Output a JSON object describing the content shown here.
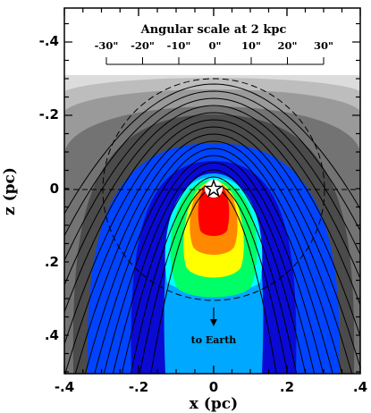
{
  "chart_data": {
    "type": "contour-map",
    "xlabel": "x (pc)",
    "ylabel": "z (pc)",
    "xlim": [
      -0.4,
      0.4
    ],
    "zlim": [
      -0.5,
      0.5
    ],
    "x_ticks": [
      "-.4",
      "-.2",
      "0",
      ".2",
      ".4"
    ],
    "z_ticks": [
      "-.4",
      "-.2",
      "0",
      ".2",
      ".4"
    ],
    "angular_scale": {
      "title": "Angular scale at 2 kpc",
      "ticks": [
        "-30\"",
        "-20\"",
        "-10\"",
        "0\"",
        "10\"",
        "20\"",
        "30\""
      ]
    },
    "annotation": "to Earth",
    "star_position": [
      0,
      0
    ],
    "circle_radius_pc": 0.3,
    "colors": {
      "band_1": "#dcdcdc",
      "band_2": "#bdbdbd",
      "band_3": "#9a9a9a",
      "band_4": "#737373",
      "band_5": "#4b4b4b",
      "band_6": "#0044ff",
      "band_7": "#0a0ad4",
      "band_8": "#00a8ff",
      "band_9": "#00ffff",
      "band_10": "#00ff66",
      "band_11": "#ffff00",
      "band_12": "#ff8800",
      "band_13": "#ff0000",
      "cavity": "#ffffff"
    }
  }
}
